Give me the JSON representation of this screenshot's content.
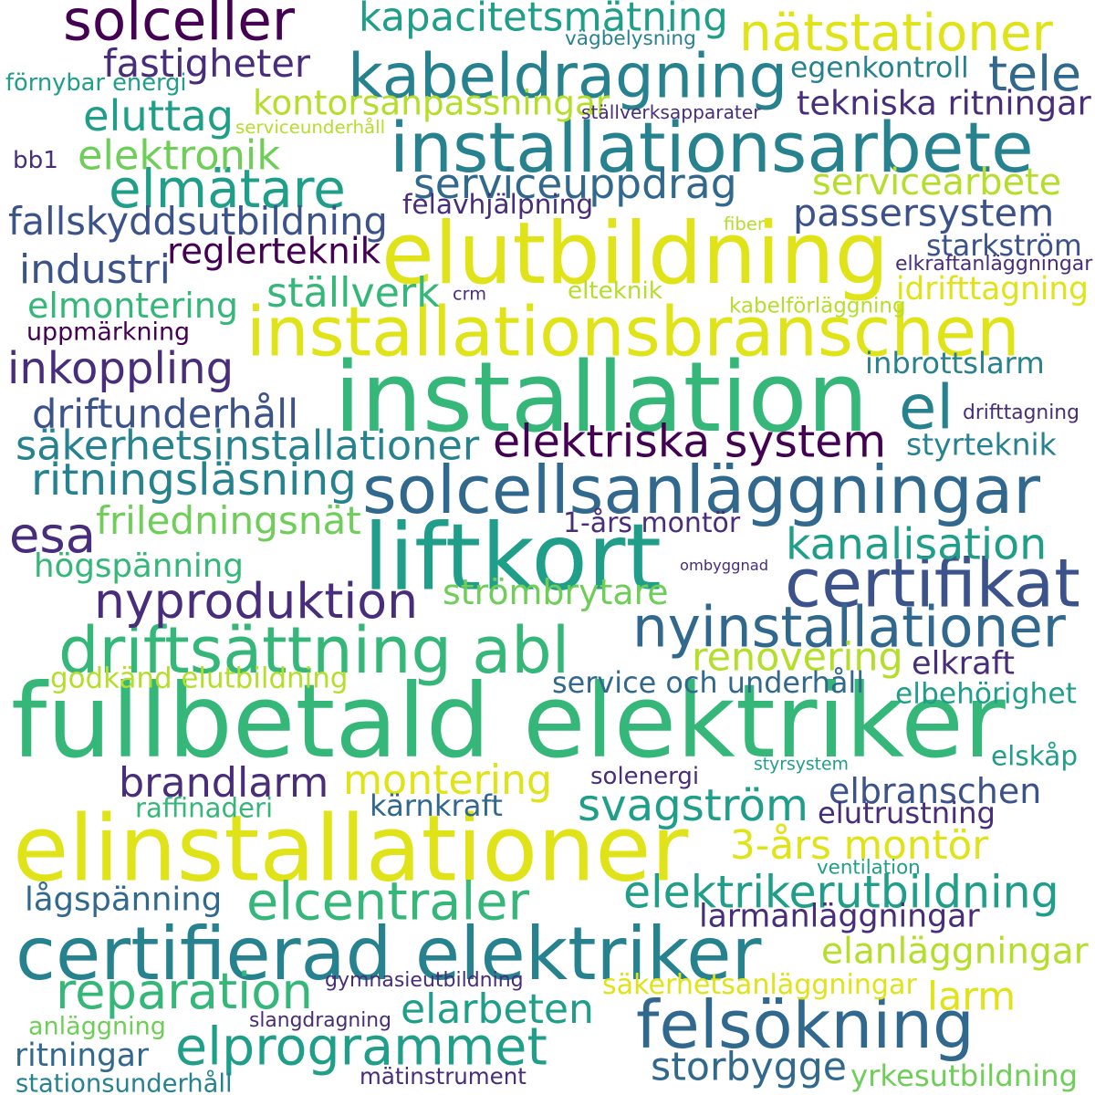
{
  "colors": {
    "purple": "#440154",
    "indigo": "#472d7b",
    "blue": "#3b528b",
    "slate": "#31688e",
    "teal": "#26828e",
    "aqua": "#1f9e89",
    "green": "#35b779",
    "lime": "#6ece58",
    "yellowgreen": "#b5de2b",
    "yellow": "#dfe318"
  },
  "words": [
    {
      "id": "fullbetald-elektriker",
      "text": "fullbetald elektriker",
      "color": "green"
    },
    {
      "id": "elinstallationer",
      "text": "elinstallationer",
      "color": "yellow"
    },
    {
      "id": "installation",
      "text": "installation",
      "color": "green"
    },
    {
      "id": "elutbildning",
      "text": "elutbildning",
      "color": "yellow"
    },
    {
      "id": "installationsbranschen",
      "text": "installationsbranschen",
      "color": "yellow"
    },
    {
      "id": "installationsarbete",
      "text": "installationsarbete",
      "color": "teal"
    },
    {
      "id": "kabeldragning",
      "text": "kabeldragning",
      "color": "teal"
    },
    {
      "id": "certifierad-elektriker",
      "text": "certifierad elektriker",
      "color": "teal"
    },
    {
      "id": "solcellsanlaggningar",
      "text": "solcellsanläggningar",
      "color": "slate"
    },
    {
      "id": "liftkort",
      "text": "liftkort",
      "color": "aqua"
    },
    {
      "id": "felsokning",
      "text": "felsökning",
      "color": "slate"
    },
    {
      "id": "elprogrammet",
      "text": "elprogrammet",
      "color": "aqua"
    },
    {
      "id": "driftsattning-abl",
      "text": "driftsättning abl",
      "color": "green"
    },
    {
      "id": "certifikat",
      "text": "certifikat",
      "color": "blue"
    },
    {
      "id": "natstationer",
      "text": "nätstationer",
      "color": "yellow"
    },
    {
      "id": "solceller",
      "text": "solceller",
      "color": "purple"
    },
    {
      "id": "elmatare",
      "text": "elmätare",
      "color": "aqua"
    },
    {
      "id": "nyproduktion",
      "text": "nyproduktion",
      "color": "indigo"
    },
    {
      "id": "nyinstallationer",
      "text": "nyinstallationer",
      "color": "slate"
    },
    {
      "id": "esa",
      "text": "esa",
      "color": "indigo"
    },
    {
      "id": "el",
      "text": "el",
      "color": "teal"
    },
    {
      "id": "reparation",
      "text": "reparation",
      "color": "green"
    },
    {
      "id": "elcentraler",
      "text": "elcentraler",
      "color": "green"
    },
    {
      "id": "svagstrom",
      "text": "svagström",
      "color": "aqua"
    },
    {
      "id": "elektriska-system",
      "text": "elektriska system",
      "color": "purple"
    },
    {
      "id": "serviceuppdrag",
      "text": "serviceuppdrag",
      "color": "slate"
    },
    {
      "id": "brandlarm",
      "text": "brandlarm",
      "color": "indigo"
    },
    {
      "id": "elektrikerutbildning",
      "text": "elektrikerutbildning",
      "color": "aqua"
    },
    {
      "id": "inkoppling",
      "text": "inkoppling",
      "color": "indigo"
    },
    {
      "id": "elbranschen",
      "text": "elbranschen",
      "color": "blue"
    },
    {
      "id": "storbygge",
      "text": "storbygge",
      "color": "slate"
    },
    {
      "id": "larm",
      "text": "larm",
      "color": "yellow"
    },
    {
      "id": "kapacitetsmatning",
      "text": "kapacitetsmätning",
      "color": "aqua"
    },
    {
      "id": "montering",
      "text": "montering",
      "color": "yellow"
    },
    {
      "id": "3-ars-montor",
      "text": "3-års montör",
      "color": "yellow"
    },
    {
      "id": "kanalisation",
      "text": "kanalisation",
      "color": "aqua"
    },
    {
      "id": "tele",
      "text": "tele",
      "color": "slate"
    },
    {
      "id": "elanlaggningar",
      "text": "elanläggningar",
      "color": "yellowgreen"
    },
    {
      "id": "elarbeten",
      "text": "elarbeten",
      "color": "aqua"
    },
    {
      "id": "passersystem",
      "text": "passersystem",
      "color": "blue"
    },
    {
      "id": "fallskyddsutbildning",
      "text": "fallskyddsutbildning",
      "color": "blue"
    },
    {
      "id": "fastigheter",
      "text": "fastigheter",
      "color": "indigo"
    },
    {
      "id": "ritningslasning",
      "text": "ritningsläsning",
      "color": "teal"
    },
    {
      "id": "sakerhetsinstallationer",
      "text": "säkerhetsinstallationer",
      "color": "teal"
    },
    {
      "id": "driftunderhall",
      "text": "driftunderhåll",
      "color": "blue"
    },
    {
      "id": "industri",
      "text": "industri",
      "color": "blue"
    },
    {
      "id": "eluttag",
      "text": "eluttag",
      "color": "aqua"
    },
    {
      "id": "elektronik",
      "text": "elektronik",
      "color": "lime"
    },
    {
      "id": "strombrytare",
      "text": "strömbrytare",
      "color": "lime"
    },
    {
      "id": "renovering",
      "text": "renovering",
      "color": "yellowgreen"
    },
    {
      "id": "elkraft",
      "text": "elkraft",
      "color": "indigo"
    },
    {
      "id": "larmanlaggningar",
      "text": "larmanläggningar",
      "color": "indigo"
    },
    {
      "id": "servicearbete",
      "text": "servicearbete",
      "color": "yellowgreen"
    },
    {
      "id": "kontorsanpassningar",
      "text": "kontorsanpassningar",
      "color": "yellowgreen"
    },
    {
      "id": "friledningsnat",
      "text": "friledningsnät",
      "color": "lime"
    },
    {
      "id": "hogspanning",
      "text": "högspänning",
      "color": "green"
    },
    {
      "id": "elmontering",
      "text": "elmontering",
      "color": "green"
    },
    {
      "id": "stallverk",
      "text": "ställverk",
      "color": "green"
    },
    {
      "id": "reglerteknik",
      "text": "reglerteknik",
      "color": "purple"
    },
    {
      "id": "lagspanning",
      "text": "lågspänning",
      "color": "slate"
    },
    {
      "id": "sakerhetsanlaggningar",
      "text": "säkerhetsanläggningar",
      "color": "yellow"
    },
    {
      "id": "tekniska-ritningar",
      "text": "tekniska ritningar",
      "color": "indigo"
    },
    {
      "id": "service-och-underhall",
      "text": "service och underhåll",
      "color": "slate"
    },
    {
      "id": "starkstrom",
      "text": "starkström",
      "color": "blue"
    },
    {
      "id": "idrifttagning",
      "text": "idrifttagning",
      "color": "yellow"
    },
    {
      "id": "uppmarkning",
      "text": "uppmärkning",
      "color": "purple"
    },
    {
      "id": "elbehorighet",
      "text": "elbehörighet",
      "color": "aqua"
    },
    {
      "id": "styrteknik",
      "text": "styrteknik",
      "color": "teal"
    },
    {
      "id": "elutrustning",
      "text": "elutrustning",
      "color": "indigo"
    },
    {
      "id": "egenkontroll",
      "text": "egenkontroll",
      "color": "teal"
    },
    {
      "id": "inbrottslarm",
      "text": "inbrottslarm",
      "color": "teal"
    },
    {
      "id": "godkand-elutbildning",
      "text": "godkänd elutbildning",
      "color": "yellowgreen"
    },
    {
      "id": "solenergi",
      "text": "solenergi",
      "color": "indigo"
    },
    {
      "id": "karnkraft",
      "text": "kärnkraft",
      "color": "slate"
    },
    {
      "id": "raffinaderi",
      "text": "raffinaderi",
      "color": "green"
    },
    {
      "id": "anlaggning",
      "text": "anläggning",
      "color": "lime"
    },
    {
      "id": "ritningar",
      "text": "ritningar",
      "color": "slate"
    },
    {
      "id": "stationsunderhall",
      "text": "stationsunderhåll",
      "color": "teal"
    },
    {
      "id": "matinstrument",
      "text": "mätinstrument",
      "color": "indigo"
    },
    {
      "id": "yrkesutbildning",
      "text": "yrkesutbildning",
      "color": "lime"
    },
    {
      "id": "elteknik",
      "text": "elteknik",
      "color": "yellowgreen"
    },
    {
      "id": "1-ars-montor",
      "text": "1-års montör",
      "color": "indigo"
    },
    {
      "id": "bb1",
      "text": "bb1",
      "color": "indigo"
    },
    {
      "id": "elskap",
      "text": "elskåp",
      "color": "aqua"
    },
    {
      "id": "felavhjalpning",
      "text": "felavhjälpning",
      "color": "indigo"
    },
    {
      "id": "slangdragning",
      "text": "slangdragning",
      "color": "indigo"
    },
    {
      "id": "fornybar-energi",
      "text": "förnybar energi",
      "color": "aqua"
    },
    {
      "id": "vagbelysning",
      "text": "vägbelysning",
      "color": "teal"
    },
    {
      "id": "stallverksapparater",
      "text": "ställverksapparater",
      "color": "indigo"
    },
    {
      "id": "serviceunderhall",
      "text": "serviceunderhåll",
      "color": "yellowgreen"
    },
    {
      "id": "kabelforlaggning",
      "text": "kabelförläggning",
      "color": "yellowgreen"
    },
    {
      "id": "gymnasieutbildning",
      "text": "gymnasieutbildning",
      "color": "indigo"
    },
    {
      "id": "styrsystem",
      "text": "styrsystem",
      "color": "aqua"
    },
    {
      "id": "ventilation",
      "text": "ventilation",
      "color": "aqua"
    },
    {
      "id": "ombyggnad",
      "text": "ombyggnad",
      "color": "indigo"
    },
    {
      "id": "drifttagning",
      "text": "drifttagning",
      "color": "indigo"
    },
    {
      "id": "elkraftanlaggningar",
      "text": "elkraftanläggningar",
      "color": "indigo"
    },
    {
      "id": "fiber",
      "text": "fiber",
      "color": "yellowgreen"
    },
    {
      "id": "crm",
      "text": "crm",
      "color": "indigo"
    }
  ]
}
